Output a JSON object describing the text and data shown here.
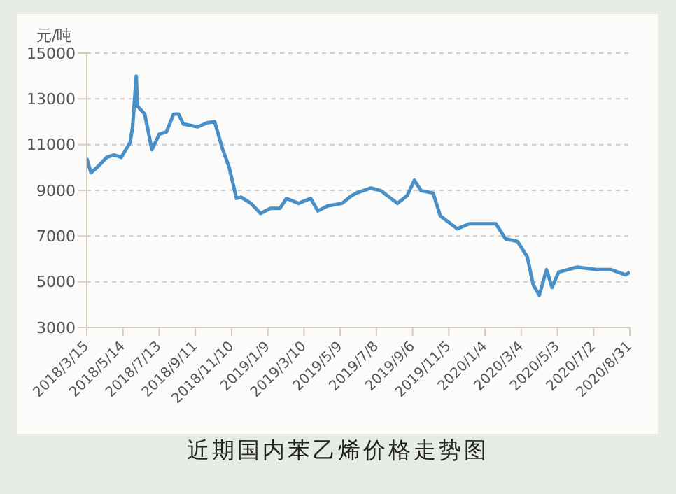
{
  "chart_data": {
    "type": "line",
    "title": "近期国内苯乙烯价格走势图",
    "ylabel": "元/吨",
    "x": [
      "2018-03-15",
      "2018-03-22",
      "2018-04-01",
      "2018-04-17",
      "2018-04-29",
      "2018-05-11",
      "2018-05-26",
      "2018-05-30",
      "2018-06-05",
      "2018-06-07",
      "2018-06-19",
      "2018-07-01",
      "2018-07-13",
      "2018-07-25",
      "2018-08-06",
      "2018-08-14",
      "2018-08-22",
      "2018-09-15",
      "2018-10-01",
      "2018-10-13",
      "2018-10-25",
      "2018-11-06",
      "2018-11-18",
      "2018-11-26",
      "2018-12-12",
      "2018-12-28",
      "2019-01-13",
      "2019-01-29",
      "2019-02-09",
      "2019-03-01",
      "2019-03-21",
      "2019-04-02",
      "2019-04-18",
      "2019-05-12",
      "2019-05-28",
      "2019-06-05",
      "2019-06-29",
      "2019-07-15",
      "2019-08-12",
      "2019-08-28",
      "2019-09-09",
      "2019-09-20",
      "2019-10-10",
      "2019-10-22",
      "2019-11-19",
      "2019-12-09",
      "2020-01-06",
      "2020-01-22",
      "2020-02-07",
      "2020-02-27",
      "2020-03-14",
      "2020-03-24",
      "2020-04-03",
      "2020-04-15",
      "2020-04-24",
      "2020-05-05",
      "2020-06-05",
      "2020-07-07",
      "2020-07-31",
      "2020-08-24",
      "2020-08-31"
    ],
    "series": [
      {
        "color": "#4a90c8",
        "values": [
          10400,
          9770,
          10000,
          10440,
          10550,
          10440,
          11100,
          11780,
          14000,
          12680,
          12340,
          10780,
          11450,
          11560,
          12340,
          12340,
          11900,
          11780,
          11960,
          12000,
          10890,
          10000,
          8650,
          8700,
          8430,
          7990,
          8210,
          8210,
          8650,
          8430,
          8650,
          8100,
          8320,
          8430,
          8770,
          8880,
          9100,
          8990,
          8430,
          8770,
          9440,
          8990,
          8880,
          7880,
          7320,
          7540,
          7540,
          7540,
          6880,
          6760,
          6090,
          4860,
          4410,
          5530,
          4750,
          5420,
          5640,
          5530,
          5530,
          5300,
          5420
        ]
      }
    ],
    "xlim": [
      "2018-03-15",
      "2020-08-31"
    ],
    "xticks": [
      {
        "value": "2018-03-15",
        "label": "2018/3/15"
      },
      {
        "value": "2018-05-14",
        "label": "2018/5/14"
      },
      {
        "value": "2018-07-13",
        "label": "2018/7/13"
      },
      {
        "value": "2018-09-11",
        "label": "2018/9/11"
      },
      {
        "value": "2018-11-10",
        "label": "2018/11/10"
      },
      {
        "value": "2019-01-09",
        "label": "2019/1/9"
      },
      {
        "value": "2019-03-10",
        "label": "2019/3/10"
      },
      {
        "value": "2019-05-09",
        "label": "2019/5/9"
      },
      {
        "value": "2019-07-08",
        "label": "2019/7/8"
      },
      {
        "value": "2019-09-06",
        "label": "2019/9/6"
      },
      {
        "value": "2019-11-05",
        "label": "2019/11/5"
      },
      {
        "value": "2020-01-04",
        "label": "2020/1/4"
      },
      {
        "value": "2020-03-04",
        "label": "2020/3/4"
      },
      {
        "value": "2020-05-03",
        "label": "2020/5/3"
      },
      {
        "value": "2020-07-02",
        "label": "2020/7/2"
      },
      {
        "value": "2020-08-31",
        "label": "2020/8/31"
      }
    ],
    "ylim": [
      3000,
      15000
    ],
    "yticks": [
      3000,
      5000,
      7000,
      9000,
      11000,
      13000,
      15000
    ],
    "grid": "y",
    "line_style": "solid",
    "marker": "none"
  }
}
